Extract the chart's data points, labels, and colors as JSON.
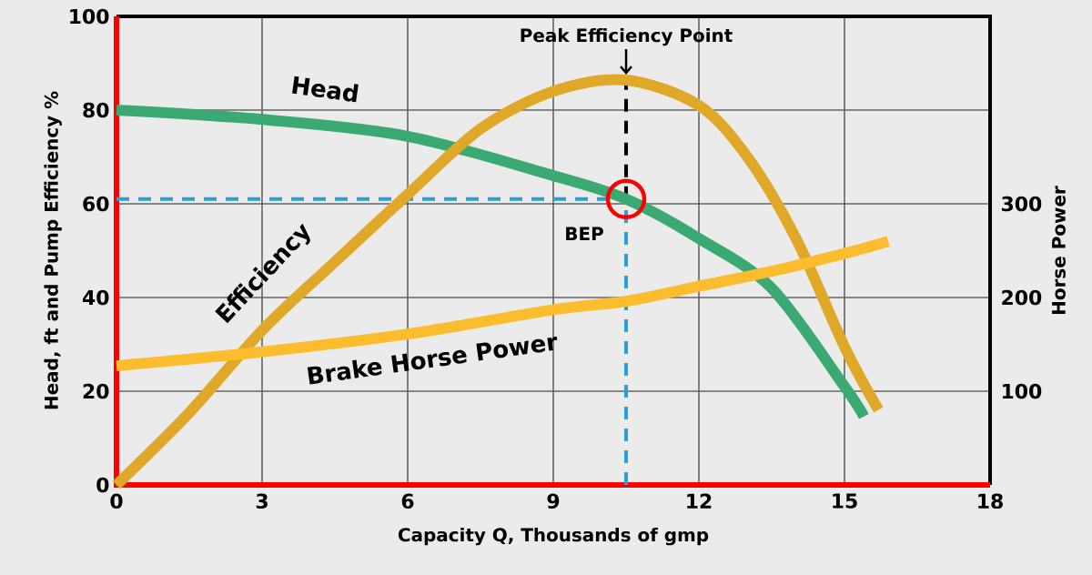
{
  "chart_data": {
    "type": "line",
    "xlabel": "Capacity Q, Thousands of gmp",
    "ylabel": "Head, ft and Pump Efficiency %",
    "y2label": "Horse Power",
    "xlim": [
      0,
      18
    ],
    "xticks": [
      0,
      3,
      6,
      9,
      12,
      15,
      18
    ],
    "ylim": [
      0,
      100
    ],
    "yticks": [
      0,
      20,
      40,
      60,
      80,
      100
    ],
    "y2lim": [
      0,
      500
    ],
    "y2ticks": [
      100,
      200,
      300
    ],
    "grid": true,
    "series": [
      {
        "name": "Head",
        "color": "#3aaa72",
        "x": [
          0,
          3,
          6,
          9,
          10.5,
          12,
          13.5,
          15,
          15.4
        ],
        "values": [
          80,
          78,
          74.4,
          66,
          61,
          52.6,
          42,
          21,
          14.6
        ]
      },
      {
        "name": "Efficiency",
        "color": "#e0a829",
        "x": [
          0,
          1.5,
          3,
          4.5,
          6,
          7.5,
          9,
          10.5,
          12,
          13,
          14,
          15,
          15.7
        ],
        "values": [
          0,
          15.4,
          33,
          47.6,
          62,
          76,
          84,
          86.4,
          81,
          70,
          52.6,
          29.5,
          16
        ]
      },
      {
        "name": "Brake Horse Power",
        "color": "#fbbd2e",
        "axis": "y2",
        "x": [
          0,
          3,
          6,
          9,
          10.5,
          12,
          13.5,
          15,
          15.9
        ],
        "values": [
          127,
          142,
          161,
          187,
          196,
          212,
          228,
          247,
          260
        ]
      }
    ],
    "ref_lines": [
      {
        "axis": "x",
        "value": 10.5,
        "color": "#2a9fd6",
        "line_style": "dashed"
      },
      {
        "axis": "y",
        "value": 61,
        "color": "#2a9fd6",
        "line_style": "dashed"
      },
      {
        "axis": "x",
        "value": 10.5,
        "color": "#000000",
        "line_style": "dashed"
      }
    ],
    "annotations": [
      {
        "text": "Peak Efficiency Point",
        "x": 10.5,
        "y": 86.4
      },
      {
        "text": "BEP",
        "x": 10.5,
        "y": 61
      }
    ]
  }
}
